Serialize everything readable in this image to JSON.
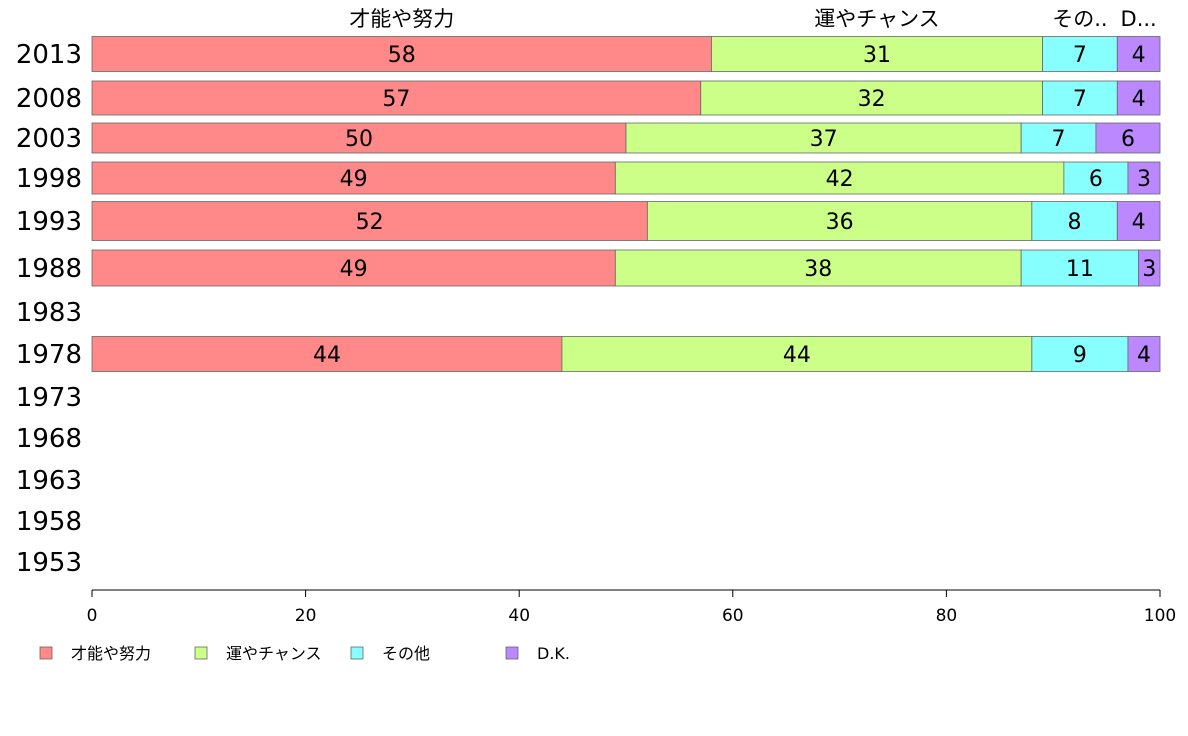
{
  "chart_data": {
    "type": "bar",
    "orientation": "horizontal",
    "stacked": true,
    "categories": [
      "2013",
      "2008",
      "2003",
      "1998",
      "1993",
      "1988",
      "1983",
      "1978",
      "1973",
      "1968",
      "1963",
      "1958",
      "1953"
    ],
    "series": [
      {
        "name": "才能や努力",
        "top_label": "才能や努力",
        "color": "#ff8888",
        "values": [
          58,
          57,
          50,
          49,
          52,
          49,
          null,
          44,
          null,
          null,
          null,
          null,
          null
        ]
      },
      {
        "name": "運やチャンス",
        "top_label": "運やチャンス",
        "color": "#ccff88",
        "values": [
          31,
          32,
          37,
          42,
          36,
          38,
          null,
          44,
          null,
          null,
          null,
          null,
          null
        ]
      },
      {
        "name": "その他",
        "top_label": "その..",
        "color": "#88ffff",
        "values": [
          7,
          7,
          7,
          6,
          8,
          11,
          null,
          9,
          null,
          null,
          null,
          null,
          null
        ]
      },
      {
        "name": "D.K.",
        "top_label": "D...",
        "color": "#bb88ff",
        "values": [
          4,
          4,
          6,
          3,
          4,
          3,
          null,
          4,
          null,
          null,
          null,
          null,
          null
        ]
      }
    ],
    "xlim": [
      0,
      100
    ],
    "xticks": [
      0,
      20,
      40,
      60,
      80,
      100
    ],
    "grid": false,
    "legend_position": "bottom-left"
  }
}
